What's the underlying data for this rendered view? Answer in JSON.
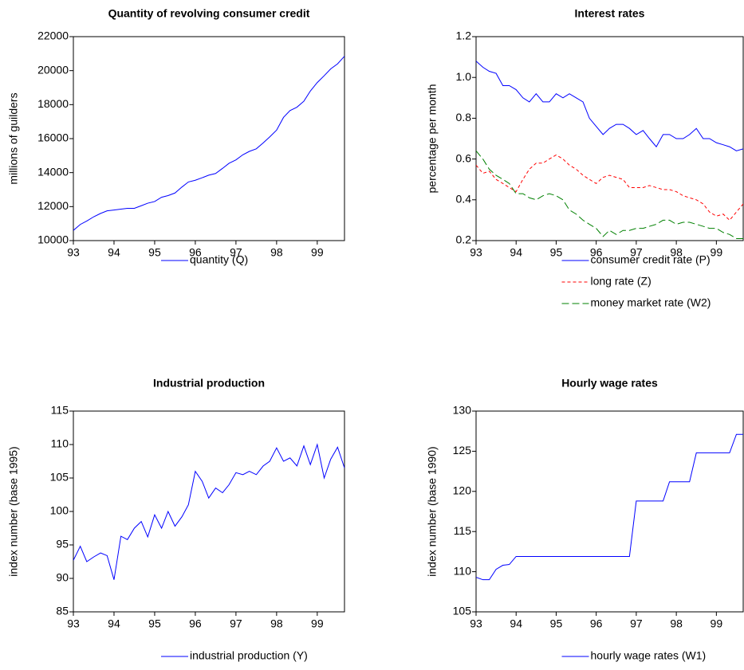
{
  "chart_data": [
    {
      "type": "line",
      "title": "Quantity of revolving consumer credit",
      "y_label": "millions of guilders",
      "legend": "bottom",
      "x": [
        93,
        93.17,
        93.33,
        93.5,
        93.67,
        93.83,
        94,
        94.17,
        94.33,
        94.5,
        94.67,
        94.83,
        95,
        95.17,
        95.33,
        95.5,
        95.67,
        95.83,
        96,
        96.17,
        96.33,
        96.5,
        96.67,
        96.83,
        97,
        97.17,
        97.33,
        97.5,
        97.67,
        97.83,
        98,
        98.17,
        98.33,
        98.5,
        98.67,
        98.83,
        99,
        99.17,
        99.33,
        99.5,
        99.67
      ],
      "xlim": [
        93,
        99.67
      ],
      "xticks": [
        93,
        94,
        95,
        96,
        97,
        98,
        99
      ],
      "ylim": [
        10000,
        22000
      ],
      "yticks": [
        10000,
        12000,
        14000,
        16000,
        18000,
        20000,
        22000
      ],
      "series": [
        {
          "name": "quantity (Q)",
          "color": "#0000ff",
          "dash": "solid",
          "values": [
            10600,
            10950,
            11150,
            11400,
            11600,
            11750,
            11800,
            11850,
            11900,
            11900,
            12050,
            12200,
            12300,
            12550,
            12650,
            12800,
            13150,
            13450,
            13550,
            13700,
            13850,
            13950,
            14250,
            14550,
            14750,
            15050,
            15250,
            15400,
            15750,
            16100,
            16500,
            17250,
            17650,
            17850,
            18200,
            18800,
            19300,
            19700,
            20100,
            20400,
            20850
          ]
        }
      ]
    },
    {
      "type": "line",
      "title": "Interest rates",
      "y_label": "percentage per month",
      "legend": "bottom",
      "x": [
        93,
        93.17,
        93.33,
        93.5,
        93.67,
        93.83,
        94,
        94.17,
        94.33,
        94.5,
        94.67,
        94.83,
        95,
        95.17,
        95.33,
        95.5,
        95.67,
        95.83,
        96,
        96.17,
        96.33,
        96.5,
        96.67,
        96.83,
        97,
        97.17,
        97.33,
        97.5,
        97.67,
        97.83,
        98,
        98.17,
        98.33,
        98.5,
        98.67,
        98.83,
        99,
        99.17,
        99.33,
        99.5,
        99.67
      ],
      "xlim": [
        93,
        99.67
      ],
      "xticks": [
        93,
        94,
        95,
        96,
        97,
        98,
        99
      ],
      "ylim": [
        0.2,
        1.2
      ],
      "yticks": [
        0.2,
        0.4,
        0.6,
        0.8,
        {
          "value": 1,
          "label": "1.0"
        },
        1.2
      ],
      "series": [
        {
          "name": "consumer credit rate (P)",
          "color": "#0000ff",
          "dash": "solid",
          "values": [
            1.08,
            1.05,
            1.03,
            1.02,
            0.96,
            0.96,
            0.94,
            0.9,
            0.88,
            0.92,
            0.88,
            0.88,
            0.92,
            0.9,
            0.92,
            0.9,
            0.88,
            0.8,
            0.76,
            0.72,
            0.75,
            0.77,
            0.77,
            0.75,
            0.72,
            0.74,
            0.7,
            0.66,
            0.72,
            0.72,
            0.7,
            0.7,
            0.72,
            0.75,
            0.7,
            0.7,
            0.68,
            0.67,
            0.66,
            0.64,
            0.65
          ]
        },
        {
          "name": "long rate (Z)",
          "color": "#ff0000",
          "dash": "dashed",
          "values": [
            0.57,
            0.53,
            0.54,
            0.5,
            0.48,
            0.46,
            0.44,
            0.5,
            0.55,
            0.58,
            0.58,
            0.6,
            0.62,
            0.6,
            0.57,
            0.55,
            0.52,
            0.5,
            0.48,
            0.51,
            0.52,
            0.51,
            0.5,
            0.46,
            0.46,
            0.46,
            0.47,
            0.46,
            0.45,
            0.45,
            0.44,
            0.42,
            0.41,
            0.4,
            0.38,
            0.34,
            0.32,
            0.33,
            0.3,
            0.34,
            0.38
          ]
        },
        {
          "name": "money market rate (W2)",
          "color": "#008000",
          "dash": "longdash",
          "values": [
            0.64,
            0.6,
            0.55,
            0.52,
            0.5,
            0.48,
            0.43,
            0.43,
            0.41,
            0.4,
            0.42,
            0.43,
            0.42,
            0.4,
            0.35,
            0.33,
            0.3,
            0.28,
            0.26,
            0.22,
            0.25,
            0.23,
            0.25,
            0.25,
            0.26,
            0.26,
            0.27,
            0.28,
            0.3,
            0.3,
            0.28,
            0.29,
            0.29,
            0.28,
            0.27,
            0.26,
            0.26,
            0.24,
            0.23,
            0.21,
            0.21
          ]
        }
      ]
    },
    {
      "type": "line",
      "title": "Industrial production",
      "y_label": "index number (base 1995)",
      "legend": "bottom",
      "x": [
        93,
        93.17,
        93.33,
        93.5,
        93.67,
        93.83,
        94,
        94.17,
        94.33,
        94.5,
        94.67,
        94.83,
        95,
        95.17,
        95.33,
        95.5,
        95.67,
        95.83,
        96,
        96.17,
        96.33,
        96.5,
        96.67,
        96.83,
        97,
        97.17,
        97.33,
        97.5,
        97.67,
        97.83,
        98,
        98.17,
        98.33,
        98.5,
        98.67,
        98.83,
        99,
        99.17,
        99.33,
        99.5,
        99.67
      ],
      "xlim": [
        93,
        99.67
      ],
      "xticks": [
        93,
        94,
        95,
        96,
        97,
        98,
        99
      ],
      "ylim": [
        85,
        115
      ],
      "yticks": [
        85,
        90,
        95,
        100,
        105,
        110,
        115
      ],
      "series": [
        {
          "name": "industrial production (Y)",
          "color": "#0000ff",
          "dash": "solid",
          "values": [
            92.7,
            94.8,
            92.5,
            93.2,
            93.8,
            93.4,
            89.8,
            96.3,
            95.8,
            97.5,
            98.5,
            96.2,
            99.5,
            97.5,
            100,
            97.8,
            99.2,
            101,
            106,
            104.5,
            102,
            103.5,
            102.8,
            104,
            105.8,
            105.5,
            106,
            105.5,
            106.8,
            107.5,
            109.5,
            107.5,
            108,
            106.8,
            109.8,
            107,
            110,
            105,
            107.8,
            109.6,
            106.5
          ]
        }
      ]
    },
    {
      "type": "line",
      "title": "Hourly wage rates",
      "y_label": "index number (base 1990)",
      "legend": "bottom",
      "x": [
        93,
        93.17,
        93.33,
        93.5,
        93.67,
        93.83,
        94,
        94.17,
        94.33,
        94.5,
        94.67,
        94.83,
        95,
        95.17,
        95.33,
        95.5,
        95.67,
        95.83,
        96,
        96.17,
        96.33,
        96.5,
        96.67,
        96.83,
        97,
        97.17,
        97.33,
        97.5,
        97.67,
        97.83,
        98,
        98.17,
        98.33,
        98.5,
        98.67,
        98.83,
        99,
        99.17,
        99.33,
        99.5,
        99.67
      ],
      "xlim": [
        93,
        99.67
      ],
      "xticks": [
        93,
        94,
        95,
        96,
        97,
        98,
        99
      ],
      "ylim": [
        105,
        130
      ],
      "yticks": [
        105,
        110,
        115,
        120,
        125,
        130
      ],
      "series": [
        {
          "name": "hourly wage rates (W1)",
          "color": "#0000ff",
          "dash": "solid",
          "values": [
            109.3,
            109,
            109,
            110.3,
            110.8,
            110.9,
            111.9,
            111.9,
            111.9,
            111.9,
            111.9,
            111.9,
            111.9,
            111.9,
            111.9,
            111.9,
            111.9,
            111.9,
            111.9,
            111.9,
            111.9,
            111.9,
            111.9,
            111.9,
            118.8,
            118.8,
            118.8,
            118.8,
            118.8,
            121.2,
            121.2,
            121.2,
            121.2,
            124.8,
            124.8,
            124.8,
            124.8,
            124.8,
            124.8,
            127.1,
            127.1
          ]
        }
      ]
    }
  ]
}
